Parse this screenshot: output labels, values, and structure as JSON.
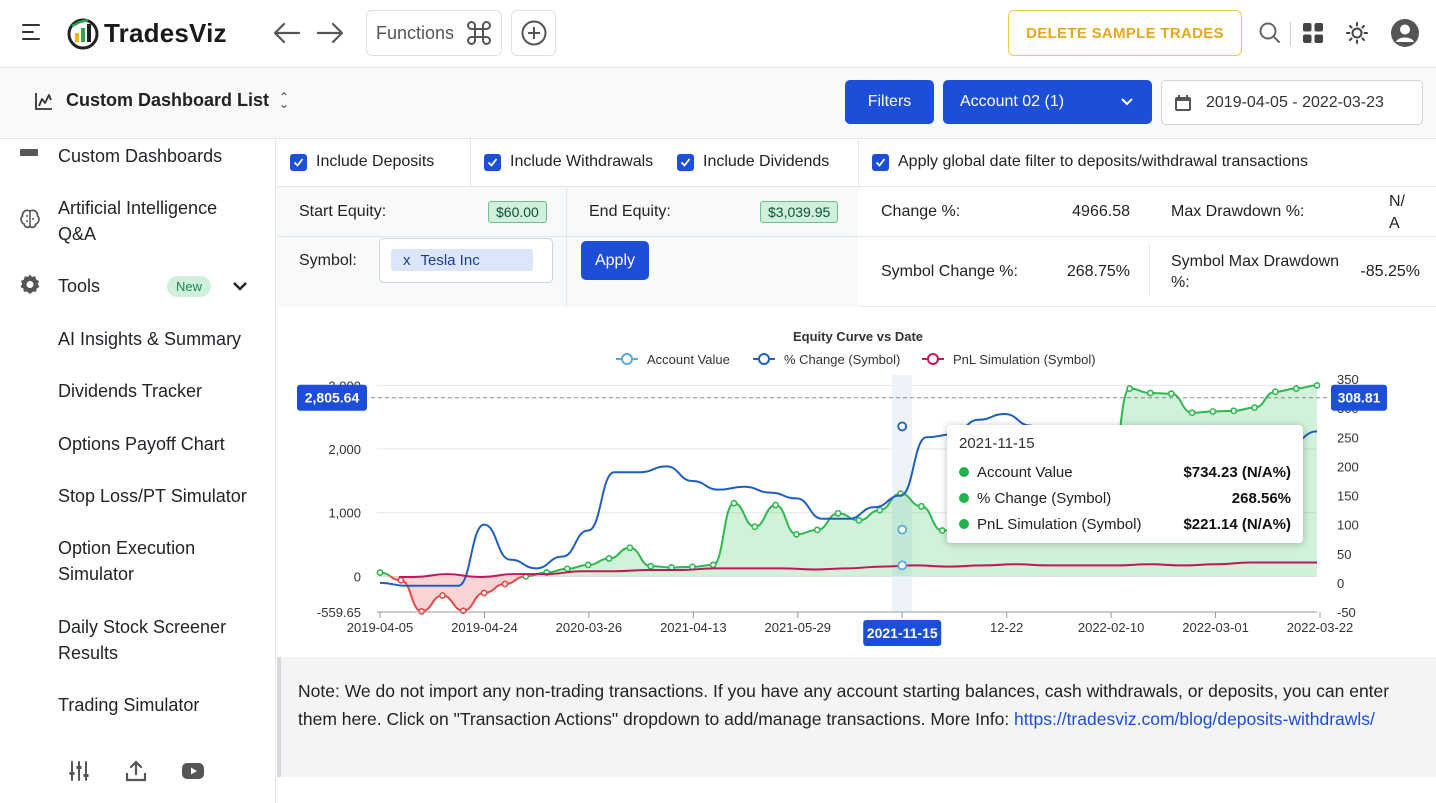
{
  "header": {
    "app_name": "TradesViz",
    "functions_label": "Functions",
    "delete_sample_label": "DELETE SAMPLE TRADES",
    "icons": [
      "hamburger-icon",
      "back-arrow-icon",
      "forward-arrow-icon",
      "command-icon",
      "plus-circle-icon",
      "search-icon",
      "apps-grid-icon",
      "sun-icon",
      "user-avatar-icon"
    ]
  },
  "subheader": {
    "dashboard_title": "Custom Dashboard List",
    "filters_label": "Filters",
    "account_label": "Account 02 (1)",
    "date_range": "2019-04-05 - 2022-03-23"
  },
  "sidebar": {
    "items": [
      {
        "label": "Custom Dashboards"
      },
      {
        "label": "Artificial Intelligence Q&A"
      },
      {
        "label": "Tools",
        "badge": "New"
      },
      {
        "label": "AI Insights & Summary"
      },
      {
        "label": "Dividends Tracker"
      },
      {
        "label": "Options Payoff Chart"
      },
      {
        "label": "Stop Loss/PT Simulator"
      },
      {
        "label": "Option Execution Simulator"
      },
      {
        "label": "Daily Stock Screener Results"
      },
      {
        "label": "Trading Simulator"
      }
    ]
  },
  "controls": {
    "include_deposits": "Include Deposits",
    "include_withdrawals": "Include Withdrawals",
    "include_dividends": "Include Dividends",
    "apply_global": "Apply global date filter to deposits/withdrawal transactions",
    "start_equity_label": "Start Equity:",
    "start_equity_value": "$60.00",
    "end_equity_label": "End Equity:",
    "end_equity_value": "$3,039.95",
    "symbol_label": "Symbol:",
    "symbol_tag": "Tesla Inc",
    "symbol_tag_remove": "x",
    "apply_label": "Apply"
  },
  "stats": {
    "change_label": "Change %:",
    "change_value": "4966.58",
    "max_dd_label": "Max Drawdown %:",
    "max_dd_value": "N/A",
    "sym_change_label": "Symbol Change %:",
    "sym_change_value": "268.75%",
    "sym_max_dd_label": "Symbol Max Drawdown %:",
    "sym_max_dd_value": "-85.25%"
  },
  "chart_data": {
    "type": "line",
    "title": "Equity Curve vs Date",
    "series": [
      {
        "name": "Account Value",
        "color": "#5aa9dc"
      },
      {
        "name": "% Change (Symbol)",
        "color": "#1f5fbf"
      },
      {
        "name": "PnL Simulation (Symbol)",
        "color": "#c2185b"
      }
    ],
    "x_ticks": [
      "2019-04-05",
      "2019-04-24",
      "2020-03-26",
      "2021-04-13",
      "2021-05-29",
      "2021-11-15",
      "12-22",
      "2022-02-10",
      "2022-03-01",
      "2022-03-22"
    ],
    "left_axis": {
      "ticks": [
        "3,000",
        "2,000",
        "1,000",
        "0",
        "-559.65"
      ],
      "range": [
        -559.65,
        3100
      ]
    },
    "right_axis": {
      "ticks": [
        "350",
        "300",
        "250",
        "200",
        "150",
        "100",
        "50",
        "0",
        "-50"
      ],
      "range": [
        -50,
        350
      ]
    },
    "crosshair_left_value": "2,805.64",
    "crosshair_right_value": "308.81",
    "crosshair_x_label": "2021-11-15",
    "account_value": [
      60,
      -60,
      -550,
      -300,
      -540,
      -260,
      -120,
      0,
      60,
      120,
      180,
      280,
      450,
      160,
      140,
      150,
      180,
      1150,
      780,
      1120,
      660,
      730,
      990,
      880,
      1040,
      1300,
      1100,
      720,
      750,
      1100,
      1350,
      1200,
      1250,
      900,
      1000,
      1400,
      2950,
      2880,
      2870,
      2570,
      2590,
      2600,
      2650,
      2900,
      2950,
      3000
    ],
    "pct_change_symbol": [
      0,
      -5,
      -5,
      -5,
      100,
      40,
      25,
      45,
      90,
      190,
      190,
      200,
      175,
      160,
      165,
      155,
      145,
      110,
      110,
      130,
      150,
      250,
      255,
      280,
      290,
      270,
      190,
      150,
      120,
      85,
      120,
      140,
      160,
      175,
      200,
      240,
      260
    ],
    "pnl_simulation_symbol": [
      10,
      10,
      15,
      10,
      15,
      15,
      20,
      20,
      22,
      22,
      25,
      25,
      25,
      23,
      25,
      28,
      30,
      28,
      30,
      32,
      30,
      30,
      30,
      32,
      30,
      32,
      35,
      35,
      35
    ],
    "tooltip": {
      "date": "2021-11-15",
      "rows": [
        {
          "name": "Account Value",
          "value": "$734.23 (N/A%)"
        },
        {
          "name": "% Change (Symbol)",
          "value": "268.56%"
        },
        {
          "name": "PnL Simulation (Symbol)",
          "value": "$221.14 (N/A%)"
        }
      ]
    }
  },
  "note": {
    "text": "Note: We do not import any non-trading transactions. If you have any account starting balances, cash withdrawals, or deposits, you can enter them here. Click on \"Transaction Actions\" dropdown to add/manage transactions. More Info: ",
    "link": "https://tradesviz.com/blog/deposits-withdrawls/"
  }
}
